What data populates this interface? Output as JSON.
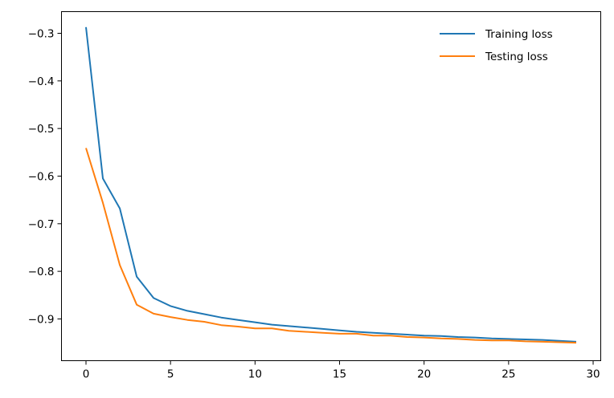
{
  "chart_data": {
    "type": "line",
    "title": "",
    "xlabel": "",
    "ylabel": "",
    "xlim": [
      -1.45,
      30.45
    ],
    "ylim": [
      -0.9877,
      -0.2545
    ],
    "xticks": [
      0,
      5,
      10,
      15,
      20,
      25,
      30
    ],
    "xtick_labels": [
      "0",
      "5",
      "10",
      "15",
      "20",
      "25",
      "30"
    ],
    "yticks": [
      -0.9,
      -0.8,
      -0.7,
      -0.6,
      -0.5,
      -0.4,
      -0.3
    ],
    "ytick_labels": [
      "−0.9",
      "−0.8",
      "−0.7",
      "−0.6",
      "−0.5",
      "−0.4",
      "−0.3"
    ],
    "grid": false,
    "legend_position": "top-right",
    "x": [
      0,
      1,
      2,
      3,
      4,
      5,
      6,
      7,
      8,
      9,
      10,
      11,
      12,
      13,
      14,
      15,
      16,
      17,
      18,
      19,
      20,
      21,
      22,
      23,
      24,
      25,
      26,
      27,
      28,
      29
    ],
    "series": [
      {
        "name": "Training loss",
        "color": "#1f77b4",
        "values": [
          -0.287,
          -0.605,
          -0.668,
          -0.811,
          -0.856,
          -0.873,
          -0.883,
          -0.89,
          -0.897,
          -0.902,
          -0.907,
          -0.912,
          -0.915,
          -0.918,
          -0.921,
          -0.924,
          -0.927,
          -0.929,
          -0.931,
          -0.933,
          -0.935,
          -0.936,
          -0.938,
          -0.939,
          -0.941,
          -0.942,
          -0.943,
          -0.944,
          -0.946,
          -0.948
        ]
      },
      {
        "name": "Testing loss",
        "color": "#ff7f0e",
        "values": [
          -0.541,
          -0.656,
          -0.787,
          -0.87,
          -0.889,
          -0.896,
          -0.902,
          -0.906,
          -0.913,
          -0.916,
          -0.92,
          -0.92,
          -0.925,
          -0.927,
          -0.929,
          -0.931,
          -0.931,
          -0.935,
          -0.935,
          -0.938,
          -0.939,
          -0.941,
          -0.942,
          -0.944,
          -0.945,
          -0.945,
          -0.947,
          -0.948,
          -0.949,
          -0.95
        ]
      }
    ]
  }
}
